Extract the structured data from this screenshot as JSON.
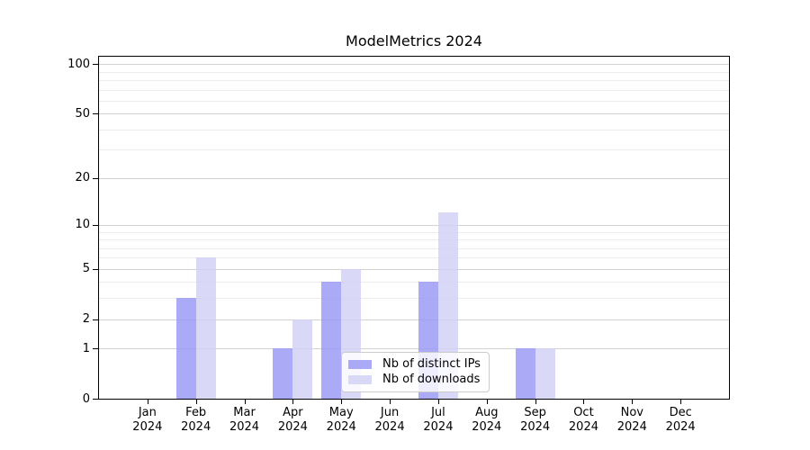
{
  "title": "ModelMetrics 2024",
  "chart_data": {
    "type": "bar",
    "title": "ModelMetrics 2024",
    "xlabel": "",
    "ylabel": "",
    "categories": [
      "Jan 2024",
      "Feb 2024",
      "Mar 2024",
      "Apr 2024",
      "May 2024",
      "Jun 2024",
      "Jul 2024",
      "Aug 2024",
      "Sep 2024",
      "Oct 2024",
      "Nov 2024",
      "Dec 2024"
    ],
    "series": [
      {
        "name": "Nb of distinct IPs",
        "color": "rgba(155,155,244,0.85)",
        "values": [
          0,
          3,
          0,
          1,
          4,
          0,
          4,
          0,
          1,
          0,
          0,
          0
        ]
      },
      {
        "name": "Nb of downloads",
        "color": "rgba(210,210,246,0.85)",
        "values": [
          0,
          6,
          0,
          2,
          5,
          0,
          12,
          0,
          1,
          0,
          0,
          0
        ]
      }
    ],
    "y_scale": "log1p",
    "y_ticks": [
      0,
      1,
      2,
      5,
      10,
      20,
      50,
      100
    ],
    "y_minor_gridlines": [
      3,
      4,
      6,
      7,
      8,
      9,
      30,
      40,
      60,
      70,
      80,
      90
    ],
    "ylim": [
      0,
      112.3
    ],
    "grid": "major+minor",
    "legend_position": "lower center"
  },
  "style": {
    "major_grid_color": "#d2d2d2",
    "minor_grid_color": "#ececec",
    "spine_color": "#000000"
  }
}
